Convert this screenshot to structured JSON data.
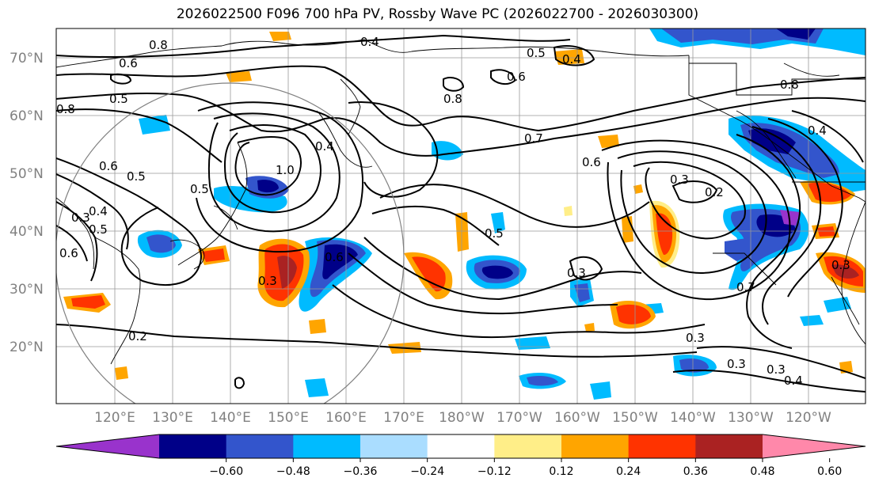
{
  "title": "2026022500 F096 700 hPa PV, Rossby Wave PC (2026022700 - 2026030300)",
  "latitude_labels": [
    "70°N",
    "60°N",
    "50°N",
    "40°N",
    "30°N",
    "20°N"
  ],
  "longitude_labels": [
    "120°E",
    "130°E",
    "140°E",
    "150°E",
    "160°E",
    "170°E",
    "180°W",
    "170°W",
    "160°W",
    "150°W",
    "140°W",
    "130°W",
    "120°W"
  ],
  "contour_labels": [
    "0.8",
    "0.6",
    "0.5",
    "0.4",
    "0.5",
    "0.6",
    "0.4",
    "0.8",
    "0.7",
    "0.6",
    "0.5",
    "0.6",
    "0.8",
    "0.4",
    "0.5",
    "0.4",
    "1.0",
    "0.8",
    "0.6",
    "0.5",
    "0.3",
    "0.4",
    "0.6",
    "0.3",
    "0.5",
    "0.3",
    "0.3",
    "0.2",
    "0.3",
    "0.3",
    "0.3",
    "0.4",
    "0.3",
    "0.2",
    "0.7"
  ],
  "colorbar": {
    "tick_labels": [
      "−0.60",
      "−0.48",
      "−0.36",
      "−0.24",
      "−0.12",
      "0.12",
      "0.24",
      "0.36",
      "0.48",
      "0.60"
    ],
    "colors": [
      "#9933cc",
      "#000088",
      "#3355cc",
      "#00bbff",
      "#aaddff",
      "#ffffff",
      "#ffee88",
      "#ffa500",
      "#ff3300",
      "#aa2222",
      "#ff88aa"
    ]
  },
  "anomaly_colors": {
    "neg_strong": "#000088",
    "neg_mid": "#3355cc",
    "neg_light": "#00bbff",
    "neg_pale": "#aaddff",
    "pos_pale": "#ffee88",
    "pos_light": "#ffa500",
    "pos_mid": "#ff3300",
    "pos_strong": "#aa2222",
    "purple": "#9933cc"
  }
}
